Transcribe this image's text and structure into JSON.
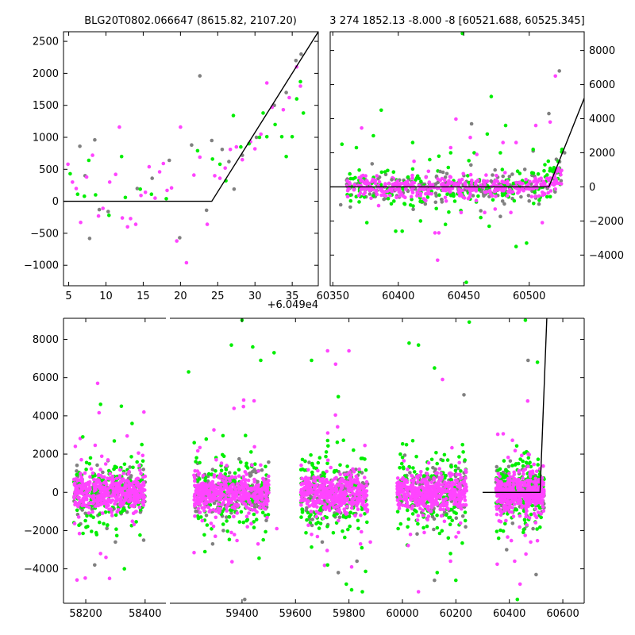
{
  "chart_data": [
    {
      "type": "scatter",
      "title": "BLG20T0802.066647 (8615.82, 2107.20)",
      "xlim": [
        4.3,
        38.5
      ],
      "ylim": [
        -1320,
        2650
      ],
      "x_ticks": [
        5,
        10,
        15,
        20,
        25,
        30,
        35
      ],
      "y_ticks": [
        -1000,
        -500,
        0,
        500,
        1000,
        1500,
        2000,
        2500
      ],
      "x_offset_label": "+6.049e4",
      "y_axis_side": "left",
      "series_colors": [
        "#808080",
        "#ff44ff",
        "#00ee00"
      ],
      "model_line": [
        [
          4.3,
          0
        ],
        [
          24.2,
          0
        ],
        [
          38.5,
          2650
        ]
      ],
      "points": {
        "gray": [
          [
            6.5,
            860
          ],
          [
            7.2,
            400
          ],
          [
            7.8,
            -580
          ],
          [
            8.5,
            960
          ],
          [
            9.1,
            -130
          ],
          [
            10.3,
            -160
          ],
          [
            14.2,
            200
          ],
          [
            16.2,
            360
          ],
          [
            18.5,
            640
          ],
          [
            19.9,
            -570
          ],
          [
            21.5,
            880
          ],
          [
            22.6,
            1960
          ],
          [
            23.5,
            -140
          ],
          [
            24.2,
            950
          ],
          [
            25.6,
            810
          ],
          [
            26.5,
            620
          ],
          [
            27.2,
            190
          ],
          [
            28.3,
            720
          ],
          [
            30.2,
            1000
          ],
          [
            32.6,
            1500
          ],
          [
            34.2,
            1700
          ],
          [
            35.5,
            2200
          ],
          [
            36.2,
            2300
          ]
        ],
        "pink": [
          [
            4.9,
            580
          ],
          [
            5.5,
            300
          ],
          [
            6.0,
            200
          ],
          [
            6.6,
            -330
          ],
          [
            7.4,
            380
          ],
          [
            8.2,
            720
          ],
          [
            9.0,
            -230
          ],
          [
            9.6,
            -110
          ],
          [
            10.5,
            300
          ],
          [
            11.3,
            420
          ],
          [
            11.8,
            1160
          ],
          [
            12.2,
            -260
          ],
          [
            12.9,
            -400
          ],
          [
            13.3,
            -270
          ],
          [
            14.0,
            -360
          ],
          [
            14.7,
            90
          ],
          [
            15.3,
            140
          ],
          [
            15.8,
            540
          ],
          [
            16.6,
            50
          ],
          [
            17.2,
            460
          ],
          [
            17.7,
            590
          ],
          [
            18.2,
            170
          ],
          [
            18.8,
            210
          ],
          [
            19.5,
            -620
          ],
          [
            20.0,
            1160
          ],
          [
            20.8,
            -960
          ],
          [
            21.8,
            410
          ],
          [
            22.6,
            690
          ],
          [
            23.6,
            -360
          ],
          [
            24.6,
            400
          ],
          [
            25.3,
            360
          ],
          [
            26.0,
            520
          ],
          [
            26.7,
            810
          ],
          [
            27.5,
            850
          ],
          [
            28.3,
            650
          ],
          [
            29.4,
            930
          ],
          [
            30.0,
            820
          ],
          [
            30.8,
            1050
          ],
          [
            31.6,
            1850
          ],
          [
            32.3,
            1470
          ],
          [
            33.8,
            1430
          ],
          [
            34.6,
            1620
          ],
          [
            35.6,
            2100
          ],
          [
            36.1,
            1800
          ]
        ],
        "green": [
          [
            5.2,
            430
          ],
          [
            6.2,
            110
          ],
          [
            7.1,
            80
          ],
          [
            7.7,
            640
          ],
          [
            8.6,
            100
          ],
          [
            10.4,
            -220
          ],
          [
            12.1,
            700
          ],
          [
            12.6,
            60
          ],
          [
            14.6,
            190
          ],
          [
            16.1,
            110
          ],
          [
            18.1,
            40
          ],
          [
            22.3,
            790
          ],
          [
            24.3,
            660
          ],
          [
            25.3,
            580
          ],
          [
            26.1,
            320
          ],
          [
            27.1,
            1340
          ],
          [
            28.1,
            850
          ],
          [
            29.2,
            900
          ],
          [
            30.6,
            1000
          ],
          [
            31.1,
            1380
          ],
          [
            31.6,
            1010
          ],
          [
            32.7,
            1200
          ],
          [
            33.6,
            1010
          ],
          [
            34.2,
            700
          ],
          [
            35.0,
            1010
          ],
          [
            35.6,
            1600
          ],
          [
            36.1,
            1870
          ],
          [
            36.5,
            1380
          ]
        ]
      }
    },
    {
      "type": "scatter",
      "title": "3 274 1852.13 -8.000 -8 [60521.688, 60525.345]",
      "xlim": [
        60348,
        60542
      ],
      "ylim": [
        -5800,
        9100
      ],
      "x_ticks": [
        60350,
        60400,
        60450,
        60500
      ],
      "y_ticks": [
        -4000,
        -2000,
        0,
        2000,
        4000,
        6000,
        8000
      ],
      "y_axis_side": "right",
      "series_colors": [
        "#808080",
        "#ff44ff",
        "#00ee00"
      ],
      "model_line": [
        [
          60348,
          0
        ],
        [
          60515,
          0
        ],
        [
          60542,
          5200
        ]
      ],
      "outliers": {
        "gray": [
          [
            60356,
            -1050
          ],
          [
            60380,
            1350
          ],
          [
            60395,
            420
          ],
          [
            60432,
            900
          ],
          [
            60456,
            3700
          ],
          [
            60463,
            -1400
          ],
          [
            60481,
            -1000
          ],
          [
            60503,
            2100
          ],
          [
            60515,
            4300
          ],
          [
            60523,
            6800
          ],
          [
            60527,
            2000
          ]
        ],
        "pink": [
          [
            60372,
            3450
          ],
          [
            60385,
            -1100
          ],
          [
            60412,
            1500
          ],
          [
            60421,
            -800
          ],
          [
            60428,
            -2700
          ],
          [
            60430,
            -4300
          ],
          [
            60431,
            -2700
          ],
          [
            60440,
            2300
          ],
          [
            60444,
            3980
          ],
          [
            60448,
            -1500
          ],
          [
            60455,
            2900
          ],
          [
            60460,
            1900
          ],
          [
            60466,
            -1500
          ],
          [
            60474,
            -1300
          ],
          [
            60480,
            2600
          ],
          [
            60486,
            -1500
          ],
          [
            60490,
            2600
          ],
          [
            60505,
            3600
          ],
          [
            60510,
            -2100
          ],
          [
            60516,
            3800
          ],
          [
            60520,
            6500
          ]
        ],
        "green": [
          [
            60357,
            2500
          ],
          [
            60368,
            2300
          ],
          [
            60376,
            -2100
          ],
          [
            60381,
            3000
          ],
          [
            60387,
            4500
          ],
          [
            60398,
            -2600
          ],
          [
            60403,
            -2600
          ],
          [
            60411,
            2600
          ],
          [
            60417,
            -2000
          ],
          [
            60424,
            1600
          ],
          [
            60431,
            1800
          ],
          [
            60436,
            -2200
          ],
          [
            60440,
            2000
          ],
          [
            60449,
            9000
          ],
          [
            60452,
            -5600
          ],
          [
            60458,
            2000
          ],
          [
            60463,
            -1800
          ],
          [
            60468,
            3100
          ],
          [
            60471,
            5300
          ],
          [
            60478,
            2000
          ],
          [
            60482,
            3600
          ],
          [
            60490,
            -3500
          ],
          [
            60498,
            -3300
          ],
          [
            60503,
            2200
          ],
          [
            60512,
            1300
          ],
          [
            60518,
            900
          ],
          [
            60522,
            1500
          ],
          [
            60525,
            2200
          ]
        ]
      }
    },
    {
      "type": "scatter",
      "x_ticks": [
        58200,
        58400,
        59400,
        59600,
        59800,
        60000,
        60200,
        60400,
        60600
      ],
      "y_ticks": [
        -4000,
        -2000,
        0,
        2000,
        4000,
        6000,
        8000
      ],
      "ylim": [
        -5800,
        9100
      ],
      "broken_x_axis": true,
      "panels": [
        {
          "xlim": [
            58125,
            58470
          ],
          "seasons": [
            [
              58160,
              58400
            ]
          ]
        },
        {
          "xlim": [
            59130,
            60680
          ],
          "seasons": [
            [
              59220,
              59500
            ],
            [
              59620,
              59870
            ],
            [
              59980,
              60240
            ],
            [
              60350,
              60530
            ]
          ]
        }
      ],
      "series_colors": [
        "#808080",
        "#ff44ff",
        "#00ee00"
      ],
      "model_line": [
        [
          60300,
          0
        ],
        [
          60515,
          0
        ],
        [
          60540,
          9100
        ]
      ],
      "outliers": {
        "gray": [
          [
            58230,
            -3800
          ],
          [
            58300,
            -2600
          ],
          [
            58395,
            -2500
          ],
          [
            59290,
            -2700
          ],
          [
            59330,
            -2000
          ],
          [
            59410,
            -5600
          ],
          [
            59700,
            -2600
          ],
          [
            59760,
            -4200
          ],
          [
            59830,
            -3600
          ],
          [
            60120,
            -4600
          ],
          [
            60230,
            5100
          ],
          [
            60390,
            -3000
          ],
          [
            60470,
            6900
          ],
          [
            60500,
            -4300
          ]
        ],
        "pink": [
          [
            58240,
            5700
          ],
          [
            58250,
            -3200
          ],
          [
            58268,
            -3400
          ],
          [
            58280,
            -4500
          ],
          [
            58396,
            4200
          ],
          [
            59300,
            -2300
          ],
          [
            59360,
            -2100
          ],
          [
            59420,
            -1800
          ],
          [
            59460,
            -2700
          ],
          [
            59530,
            -1900
          ],
          [
            59660,
            -2200
          ],
          [
            59720,
            7400
          ],
          [
            59750,
            6700
          ],
          [
            59800,
            7400
          ],
          [
            59810,
            -3900
          ],
          [
            59880,
            -2600
          ],
          [
            60030,
            -2200
          ],
          [
            60060,
            -5200
          ],
          [
            60150,
            5900
          ],
          [
            60180,
            -3600
          ],
          [
            60210,
            -2100
          ],
          [
            60420,
            -3600
          ],
          [
            60440,
            -4800
          ],
          [
            60480,
            -2600
          ]
        ],
        "green": [
          [
            58190,
            2900
          ],
          [
            58250,
            4600
          ],
          [
            58320,
            4500
          ],
          [
            58330,
            -4000
          ],
          [
            58356,
            3600
          ],
          [
            59200,
            6300
          ],
          [
            59360,
            7700
          ],
          [
            59400,
            9000
          ],
          [
            59440,
            7600
          ],
          [
            59470,
            6900
          ],
          [
            59520,
            7300
          ],
          [
            59660,
            6900
          ],
          [
            59720,
            -3800
          ],
          [
            59760,
            5000
          ],
          [
            59790,
            -4800
          ],
          [
            59810,
            -5100
          ],
          [
            59850,
            -5200
          ],
          [
            60025,
            7800
          ],
          [
            60060,
            7700
          ],
          [
            60120,
            6500
          ],
          [
            60130,
            -4200
          ],
          [
            60180,
            -3200
          ],
          [
            60200,
            -4600
          ],
          [
            60250,
            8900
          ],
          [
            60360,
            -2400
          ],
          [
            60430,
            -5600
          ],
          [
            60460,
            9000
          ],
          [
            60505,
            6800
          ]
        ]
      }
    }
  ]
}
